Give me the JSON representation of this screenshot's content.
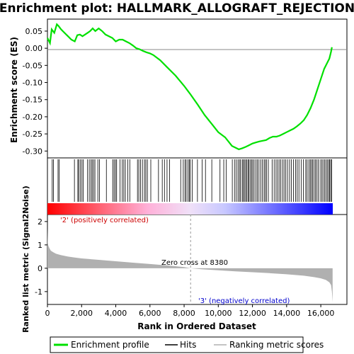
{
  "title": "Enrichment plot: HALLMARK_ALLOGRAFT_REJECTION",
  "colors": {
    "enrichment_line": "#00e000",
    "hit": "#000000",
    "metric_fill": "#b0b0b0",
    "positive_label": "#cc0000",
    "negative_label": "#0000cc",
    "heat_positive": "#ff0000",
    "heat_negative": "#0000ff",
    "zero_cross_line": "#999999"
  },
  "legend": {
    "items": [
      {
        "label": "Enrichment profile",
        "color": "#00e000",
        "style": "line"
      },
      {
        "label": "Hits",
        "color": "#000000",
        "style": "line"
      },
      {
        "label": "Ranking metric scores",
        "color": "#b0b0b0",
        "style": "line"
      }
    ]
  },
  "chart_data": [
    {
      "type": "line",
      "name": "enrichment-score",
      "ylabel": "Enrichment score (ES)",
      "xlim": [
        0,
        16700
      ],
      "ylim": [
        -0.32,
        0.085
      ],
      "yticks": [
        0.05,
        0.0,
        -0.05,
        -0.1,
        -0.15,
        -0.2,
        -0.25,
        -0.3
      ],
      "ytick_labels": [
        "0.05",
        "0.00",
        "-0.05",
        "-0.10",
        "-0.15",
        "-0.20",
        "-0.25",
        "-0.30"
      ],
      "series": [
        {
          "x": [
            0,
            150,
            250,
            400,
            550,
            650,
            800,
            1000,
            1200,
            1400,
            1600,
            1750,
            1900,
            2050,
            2200,
            2350,
            2500,
            2650,
            2800,
            3000,
            3200,
            3400,
            3600,
            3800,
            4000,
            4200,
            4400,
            4600,
            4800,
            5000,
            5200,
            5400,
            5600,
            5800,
            6000,
            6200,
            6600,
            7000,
            7500,
            8000,
            8380,
            8800,
            9200,
            9600,
            10000,
            10400,
            10800,
            11000,
            11200,
            11400,
            11600,
            11800,
            12000,
            12200,
            12400,
            12600,
            12800,
            13000,
            13200,
            13400,
            13600,
            13800,
            14000,
            14200,
            14400,
            14600,
            14800,
            15000,
            15200,
            15400,
            15600,
            15800,
            16000,
            16200,
            16350,
            16500,
            16600,
            16650
          ],
          "values": [
            0.03,
            0.015,
            0.055,
            0.045,
            0.07,
            0.065,
            0.055,
            0.045,
            0.035,
            0.025,
            0.02,
            0.038,
            0.04,
            0.035,
            0.04,
            0.045,
            0.05,
            0.058,
            0.05,
            0.058,
            0.05,
            0.04,
            0.035,
            0.03,
            0.02,
            0.025,
            0.025,
            0.02,
            0.015,
            0.008,
            0.0,
            -0.003,
            -0.008,
            -0.012,
            -0.015,
            -0.02,
            -0.035,
            -0.055,
            -0.08,
            -0.11,
            -0.135,
            -0.165,
            -0.195,
            -0.22,
            -0.245,
            -0.26,
            -0.285,
            -0.29,
            -0.295,
            -0.292,
            -0.288,
            -0.283,
            -0.278,
            -0.275,
            -0.272,
            -0.27,
            -0.268,
            -0.262,
            -0.258,
            -0.258,
            -0.255,
            -0.25,
            -0.245,
            -0.24,
            -0.235,
            -0.228,
            -0.22,
            -0.21,
            -0.195,
            -0.175,
            -0.15,
            -0.12,
            -0.09,
            -0.06,
            -0.045,
            -0.03,
            -0.01,
            0.003
          ]
        }
      ]
    },
    {
      "type": "scatter",
      "name": "hits",
      "xlim": [
        0,
        16700
      ],
      "x": [
        280,
        350,
        620,
        690,
        1580,
        1780,
        1830,
        1920,
        2020,
        2100,
        2350,
        2450,
        2550,
        2620,
        2700,
        2780,
        2950,
        3050,
        3450,
        3820,
        3900,
        3980,
        4050,
        4250,
        4380,
        4470,
        4560,
        4700,
        4820,
        5270,
        5350,
        5450,
        5560,
        5680,
        5760,
        5850,
        6050,
        6500,
        6720,
        6850,
        7000,
        7150,
        7800,
        7950,
        8050,
        8120,
        8230,
        8300,
        8360,
        8480,
        8780,
        9050,
        9250,
        9620,
        10100,
        10320,
        10460,
        10820,
        10950,
        11050,
        11150,
        11230,
        11300,
        11400,
        11460,
        11530,
        11600,
        11670,
        11740,
        11800,
        11880,
        11950,
        12020,
        12100,
        12200,
        12290,
        12380,
        12480,
        12580,
        12680,
        12750,
        12830,
        12930,
        13150,
        13270,
        13380,
        13470,
        13560,
        13650,
        13760,
        13850,
        13950,
        14050,
        14170,
        14280,
        14400,
        14520,
        14620,
        14720,
        14850,
        14980,
        15120,
        15200,
        15300,
        15380,
        15450,
        15520,
        15600,
        15680,
        15760,
        15850,
        15960,
        16060,
        16130,
        16220,
        16300,
        16380,
        16460,
        16520,
        16580,
        16640
      ]
    },
    {
      "type": "area",
      "name": "ranked-list-metric",
      "ylabel": "Ranked list metric (Signal2Noise)",
      "xlabel": "Rank in Ordered Dataset",
      "xlim": [
        0,
        16700
      ],
      "ylim": [
        -1.55,
        2.3
      ],
      "yticks": [
        2,
        1,
        0,
        -1
      ],
      "ytick_labels": [
        "2",
        "1",
        "0",
        "-1"
      ],
      "xticks": [
        0,
        2000,
        4000,
        6000,
        8000,
        10000,
        12000,
        14000,
        16000
      ],
      "xtick_labels": [
        "0",
        "2,000",
        "4,000",
        "6,000",
        "8,000",
        "10,000",
        "12,000",
        "14,000",
        "16,000"
      ],
      "x": [
        0,
        20,
        60,
        120,
        200,
        350,
        500,
        800,
        1200,
        1600,
        2000,
        3000,
        4000,
        5000,
        6000,
        7000,
        8000,
        8380,
        9000,
        10000,
        11000,
        12000,
        13000,
        14000,
        15000,
        15600,
        16000,
        16300,
        16500,
        16600,
        16650,
        16690
      ],
      "values": [
        1.7,
        1.1,
        0.95,
        0.85,
        0.75,
        0.68,
        0.62,
        0.56,
        0.5,
        0.46,
        0.42,
        0.36,
        0.3,
        0.24,
        0.18,
        0.12,
        0.05,
        0.0,
        -0.04,
        -0.09,
        -0.13,
        -0.17,
        -0.21,
        -0.26,
        -0.32,
        -0.38,
        -0.43,
        -0.5,
        -0.6,
        -0.72,
        -1.0,
        -1.45
      ],
      "zero_cross_rank": 8380,
      "annotations": {
        "positive": "'2' (positively correlated)",
        "negative": "'3' (negatively correlated)",
        "zero_cross": "Zero cross at 8380"
      }
    }
  ]
}
